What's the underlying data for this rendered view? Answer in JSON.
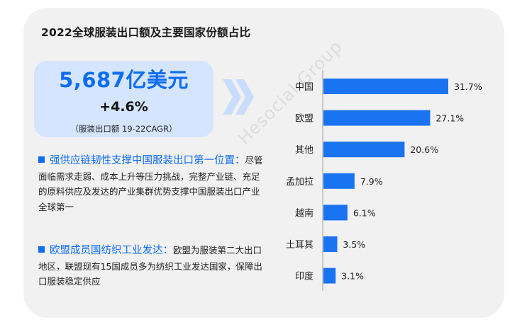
{
  "title": "2022全球服装出口额及主要国家份额占比",
  "kpi": {
    "value": "5,687亿美元",
    "growth": "+4.6%",
    "note": "（服装出口额 19-22CAGR）"
  },
  "bullets": [
    {
      "heading": "强供应链韧性支撑中国服装出口第一位置",
      "separator": "：",
      "text": "尽管面临需求走弱、成本上升等压力挑战，完整产业链、充足的原料供应及发达的产业集群优势支撑中国服装出口产业全球第一"
    },
    {
      "heading": "欧盟成员国纺织工业发达",
      "separator": "：",
      "text": "欧盟为服装第二大出口地区，联盟现有15国成员多为纺织工业发达国家，保障出口服装稳定供应"
    }
  ],
  "watermark": "Hesocial Group",
  "colors": {
    "accent": "#0d6cf2",
    "bar": "#1a73f0",
    "kpi_bg": "#d5e5ff",
    "chevron": "#c9dcfb",
    "card_bg": "#f1f1f1"
  },
  "chart_data": {
    "type": "bar",
    "orientation": "horizontal",
    "categories": [
      "中国",
      "欧盟",
      "其他",
      "孟加拉",
      "越南",
      "土耳其",
      "印度"
    ],
    "values": [
      31.7,
      27.1,
      20.6,
      7.9,
      6.1,
      3.5,
      3.1
    ],
    "value_labels": [
      "31.7%",
      "27.1%",
      "20.6%",
      "7.9%",
      "6.1%",
      "3.5%",
      "3.1%"
    ],
    "xlim": [
      0,
      31.7
    ],
    "grid": false,
    "legend": "none"
  }
}
